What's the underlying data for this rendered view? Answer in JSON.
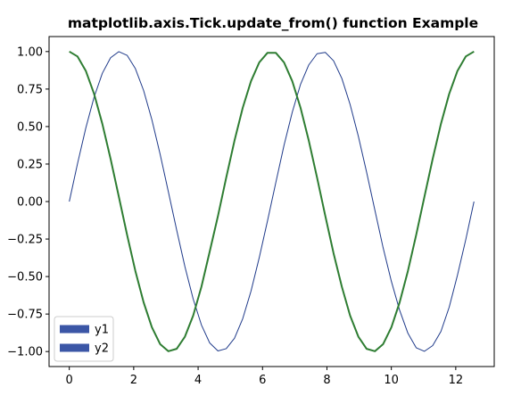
{
  "chart_data": {
    "type": "line",
    "title": "matplotlib.axis.Tick.update_from() function Example",
    "xlabel": "",
    "ylabel": "",
    "xlim": [
      -0.628,
      13.195
    ],
    "ylim": [
      -1.1,
      1.1
    ],
    "xticks": [
      0,
      2,
      4,
      6,
      8,
      10,
      12
    ],
    "yticks": [
      -1.0,
      -0.75,
      -0.5,
      -0.25,
      0.0,
      0.25,
      0.5,
      0.75,
      1.0
    ],
    "xtick_labels": [
      "0",
      "2",
      "4",
      "6",
      "8",
      "10",
      "12"
    ],
    "ytick_labels": [
      "−1.00",
      "−0.75",
      "−0.50",
      "−0.25",
      "0.00",
      "0.25",
      "0.50",
      "0.75",
      "1.00"
    ],
    "grid": false,
    "legend_position": "lower-left",
    "x": [
      0.0,
      0.2565,
      0.5129,
      0.7694,
      1.0258,
      1.2823,
      1.5387,
      1.7952,
      2.0516,
      2.3081,
      2.5646,
      2.821,
      3.0775,
      3.3339,
      3.5904,
      3.8468,
      4.1033,
      4.3598,
      4.6162,
      4.8727,
      5.1291,
      5.3856,
      5.642,
      5.8985,
      6.1549,
      6.4114,
      6.6679,
      6.9243,
      7.1808,
      7.4372,
      7.6937,
      7.9501,
      8.2066,
      8.4631,
      8.7195,
      8.976,
      9.2324,
      9.4889,
      9.7453,
      10.0018,
      10.2582,
      10.5147,
      10.7712,
      11.0276,
      11.2841,
      11.5405,
      11.797,
      12.0534,
      12.3099,
      12.5664
    ],
    "series": [
      {
        "name": "y1",
        "color": "#1f3a8a",
        "legend_color": "#3b56a6",
        "values": [
          0.0,
          0.2537,
          0.4907,
          0.6956,
          0.8551,
          0.9587,
          0.9995,
          0.9749,
          0.8866,
          0.7403,
          0.5455,
          0.315,
          0.0641,
          -0.1893,
          -0.4339,
          -0.6494,
          -0.823,
          -0.9427,
          -0.9959,
          -0.9807,
          -0.9113,
          -0.7806,
          -0.5974,
          -0.3736,
          -0.1284,
          0.1253,
          0.3752,
          0.5962,
          0.7818,
          0.9113,
          0.9856,
          0.9943,
          0.9382,
          0.8208,
          0.6476,
          0.435,
          0.1955,
          -0.057,
          -0.3088,
          -0.5326,
          -0.7253,
          -0.8779,
          -0.9747,
          -0.9983,
          -0.9604,
          -0.866,
          -0.704,
          -0.4908,
          -0.2546,
          0.0
        ]
      },
      {
        "name": "y2",
        "color": "#2e7d32",
        "legend_color": "#3b56a6",
        "values": [
          1.0,
          0.9673,
          0.8713,
          0.7183,
          0.5184,
          0.2846,
          0.0321,
          -0.2225,
          -0.4627,
          -0.6719,
          -0.8381,
          -0.9506,
          -0.9979,
          -0.9819,
          -0.901,
          -0.7604,
          -0.568,
          -0.3336,
          -0.0964,
          0.1594,
          0.4055,
          0.6251,
          0.8024,
          0.9276,
          0.9917,
          0.9917,
          0.9276,
          0.8024,
          0.6251,
          0.4055,
          0.1594,
          -0.0964,
          -0.3454,
          -0.568,
          -0.7604,
          -0.901,
          -0.9819,
          -0.9979,
          -0.9506,
          -0.8381,
          -0.6719,
          -0.4627,
          -0.2225,
          0.0321,
          0.2846,
          0.5184,
          0.7183,
          0.8713,
          0.9673,
          1.0
        ]
      }
    ]
  }
}
